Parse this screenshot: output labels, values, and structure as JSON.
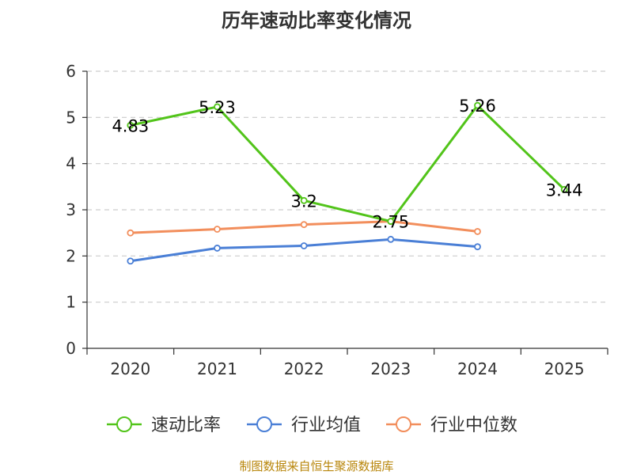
{
  "chart_data": {
    "type": "line",
    "title": "历年速动比率变化情况",
    "categories": [
      "2020",
      "2021",
      "2022",
      "2023",
      "2024",
      "2025"
    ],
    "ylim": [
      0,
      6
    ],
    "yticks": [
      "0",
      "1",
      "2",
      "3",
      "4",
      "5",
      "6"
    ],
    "grid": true,
    "legend_position": "bottom",
    "series": [
      {
        "name": "速动比率",
        "color": "#52c41a",
        "values": [
          4.83,
          5.23,
          3.2,
          2.75,
          5.26,
          3.44
        ],
        "labels": [
          "4.83",
          "5.23",
          "3.2",
          "2.75",
          "5.26",
          "3.44"
        ],
        "show_labels": true
      },
      {
        "name": "行业均值",
        "color": "#4a7fd6",
        "values": [
          1.89,
          2.17,
          2.22,
          2.36,
          2.2,
          null
        ],
        "show_labels": false
      },
      {
        "name": "行业中位数",
        "color": "#f28e5c",
        "values": [
          2.5,
          2.58,
          2.68,
          2.75,
          2.53,
          null
        ],
        "show_labels": false
      }
    ]
  },
  "source": "制图数据来自恒生聚源数据库"
}
